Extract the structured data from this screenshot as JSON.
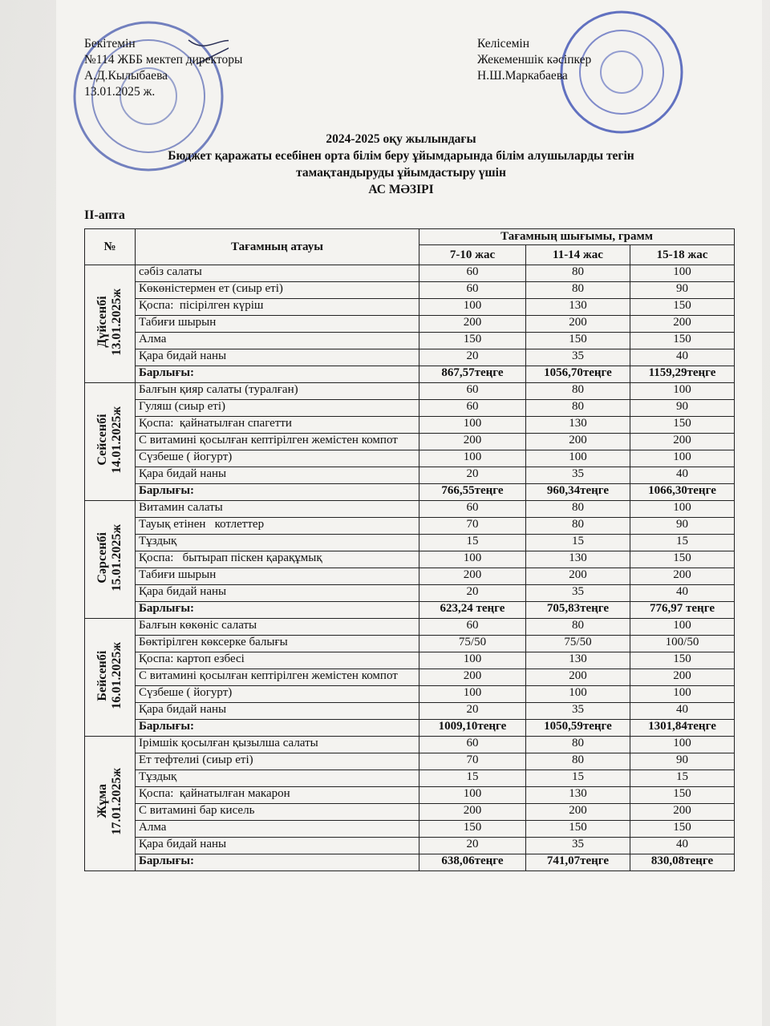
{
  "approval": {
    "left": [
      "Бекітемін",
      "№114 ЖББ мектеп директоры",
      "А.Д.Кылыбаева",
      "13.01.2025 ж."
    ],
    "right": [
      "Келісемін",
      "Жекеменшік кәсіпкер",
      "Н.Ш.Маркабаева"
    ]
  },
  "title": [
    "2024-2025 оқу жылындағы",
    "Бюджет қаражаты есебінен орта білім беру ұйымдарында білім алушыларды тегін",
    "тамақтандыруды ұйымдастыру үшін",
    "АС МӘЗІРІ"
  ],
  "week": "ІІ-апта",
  "table": {
    "headers": [
      "№",
      "Тағамның атауы",
      "Тағамның шығымы, грамм"
    ],
    "age_groups": [
      "7-10 жас",
      "11-14 жас",
      "15-18 жас"
    ],
    "days": [
      {
        "day": "Дүйсенбі",
        "date": "13.01.2025ж",
        "rows": [
          [
            "сәбіз салаты",
            "60",
            "80",
            "100"
          ],
          [
            "Көкөністермен ет (сиыр еті)",
            "60",
            "80",
            "90"
          ],
          [
            "Қоспа:  пісірілген күріш",
            "100",
            "130",
            "150"
          ],
          [
            "Табиғи шырын",
            "200",
            "200",
            "200"
          ],
          [
            "Алма",
            "150",
            "150",
            "150"
          ],
          [
            "Қара бидай наны",
            "20",
            "35",
            "40"
          ]
        ],
        "total": [
          "Барлығы:",
          "867,57теңге",
          "1056,70теңге",
          "1159,29теңге"
        ]
      },
      {
        "day": "Сейсенбі",
        "date": "14.01.2025ж",
        "rows": [
          [
            "Балғын қияр салаты (туралған)",
            "60",
            "80",
            "100"
          ],
          [
            "Гуляш (сиыр еті)",
            "60",
            "80",
            "90"
          ],
          [
            "Қоспа:  қайнатылған спагетти",
            "100",
            "130",
            "150"
          ],
          [
            "С витамині қосылған кептірілген жемістен компот",
            "200",
            "200",
            "200"
          ],
          [
            "Сүзбеше ( йогурт)",
            "100",
            "100",
            "100"
          ],
          [
            "Қара бидай наны",
            "20",
            "35",
            "40"
          ]
        ],
        "total": [
          "Барлығы:",
          "766,55теңге",
          "960,34теңге",
          "1066,30теңге"
        ]
      },
      {
        "day": "Сәрсенбі",
        "date": "15.01.2025ж",
        "rows": [
          [
            "Витамин салаты",
            "60",
            "80",
            "100"
          ],
          [
            "Тауық етінен   котлеттер",
            "70",
            "80",
            "90"
          ],
          [
            "Тұздық",
            "15",
            "15",
            "15"
          ],
          [
            "Қоспа:   бытырап піскен қарақұмық",
            "100",
            "130",
            "150"
          ],
          [
            "Табиғи шырын",
            "200",
            "200",
            "200"
          ],
          [
            "Қара бидай наны",
            "20",
            "35",
            "40"
          ]
        ],
        "total": [
          "Барлығы:",
          "623,24 теңге",
          "705,83теңге",
          "776,97 теңге"
        ]
      },
      {
        "day": "Бейсенбі",
        "date": "16.01.2025ж",
        "rows": [
          [
            "Балғын көкөніс салаты",
            "60",
            "80",
            "100"
          ],
          [
            "Бөктірілген көксерке балығы",
            "75/50",
            "75/50",
            "100/50"
          ],
          [
            "Қоспа: картоп езбесі",
            "100",
            "130",
            "150"
          ],
          [
            "С витамині қосылған кептірілген жемістен компот",
            "200",
            "200",
            "200"
          ],
          [
            "Сүзбеше ( йогурт)",
            "100",
            "100",
            "100"
          ],
          [
            "Қара бидай наны",
            "20",
            "35",
            "40"
          ]
        ],
        "total": [
          "Барлығы:",
          "1009,10теңге",
          "1050,59теңге",
          "1301,84теңге"
        ]
      },
      {
        "day": "Жұма",
        "date": "17.01.2025ж",
        "rows": [
          [
            "Ірімшік қосылған қызылша салаты",
            "60",
            "80",
            "100"
          ],
          [
            "Ет тефтелиі (сиыр еті)",
            "70",
            "80",
            "90"
          ],
          [
            "Тұздық",
            "15",
            "15",
            "15"
          ],
          [
            "Қоспа:  қайнатылған макарон",
            "100",
            "130",
            "150"
          ],
          [
            "С витамині бар кисель",
            "200",
            "200",
            "200"
          ],
          [
            "Алма",
            "150",
            "150",
            "150"
          ],
          [
            "Қара бидай наны",
            "20",
            "35",
            "40"
          ]
        ],
        "total": [
          "Барлығы:",
          "638,06теңге",
          "741,07теңге",
          "830,08теңге"
        ]
      }
    ]
  }
}
